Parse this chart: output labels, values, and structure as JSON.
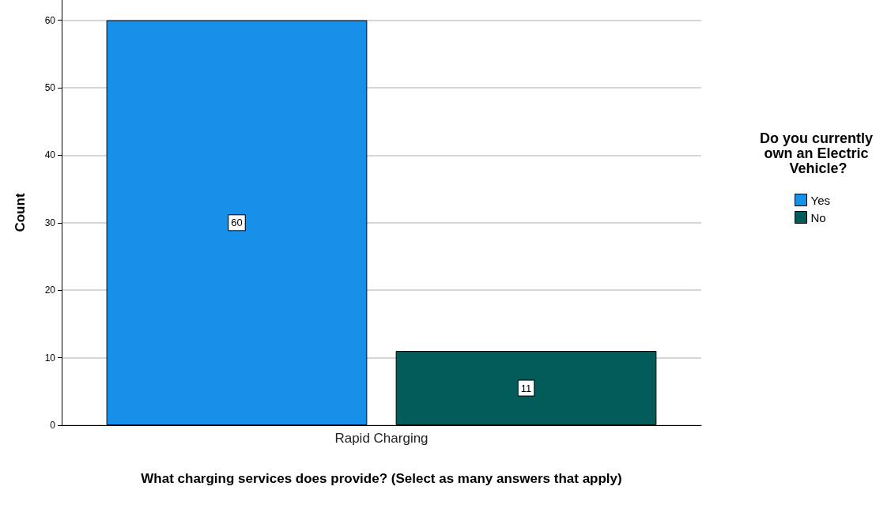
{
  "chart_data": {
    "type": "bar",
    "xlabel": "What charging services does provide? (Select as many answers that apply)",
    "ylabel": "Count",
    "legend_title": "Do you currently own an Electric Vehicle?",
    "categories": [
      "Rapid Charging"
    ],
    "series": [
      {
        "name": "Yes",
        "color": "#1690e8",
        "values": [
          60
        ]
      },
      {
        "name": "No",
        "color": "#035c5a",
        "values": [
          11
        ]
      }
    ],
    "ylim": [
      0,
      63
    ],
    "yticks": [
      0,
      10,
      20,
      30,
      40,
      50,
      60
    ],
    "grid": "y",
    "legend": "right",
    "data_labels": true
  }
}
